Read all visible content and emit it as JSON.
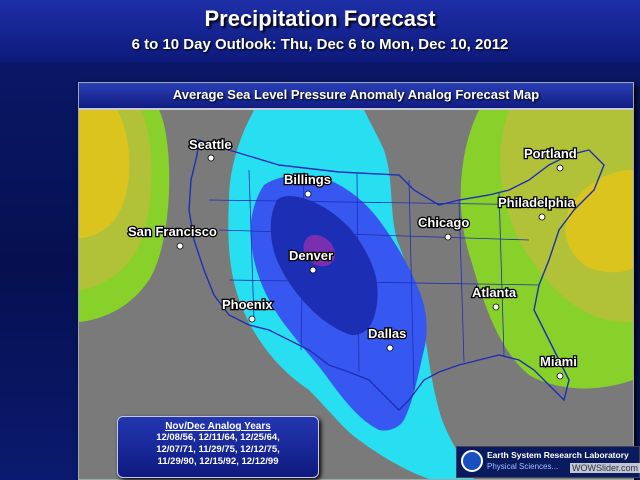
{
  "header": {
    "title": "Precipitation Forecast",
    "subtitle": "6 to 10 Day Outlook: Thu, Dec 6 to Mon, Dec 10, 2012"
  },
  "map": {
    "title": "Average Sea Level Pressure Anomaly Analog Forecast Map",
    "colors": {
      "background": "#7a7a7a",
      "deep_low": "#1c2fb4",
      "low": "#3758f0",
      "light_low": "#27dff0",
      "high_green": "#88d02a",
      "high_olive": "#b2c238",
      "high_yellow": "#dcc41e",
      "core_purple": "#7a2fb0"
    },
    "cities": [
      {
        "name": "Seattle"
      },
      {
        "name": "Billings"
      },
      {
        "name": "Portland"
      },
      {
        "name": "Philadelphia"
      },
      {
        "name": "Chicago"
      },
      {
        "name": "San Francisco"
      },
      {
        "name": "Denver"
      },
      {
        "name": "Phoenix"
      },
      {
        "name": "Atlanta"
      },
      {
        "name": "Dallas"
      },
      {
        "name": "Miami"
      }
    ]
  },
  "analog_years": {
    "title": "Nov/Dec Analog Years",
    "lines": [
      "12/08/56, 12/11/64, 12/25/64,",
      "12/07/71, 11/29/75, 12/12/75,",
      "11/29/90, 12/15/92, 12/12/99"
    ]
  },
  "credit": {
    "name": "Earth System Research Laboratory",
    "division": "Physical Sciences..."
  },
  "watermark": "WOWSlider.com"
}
